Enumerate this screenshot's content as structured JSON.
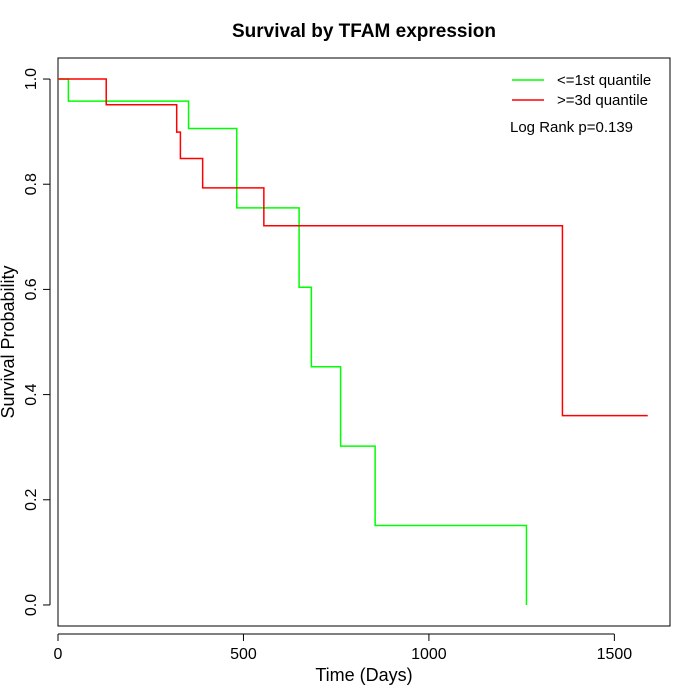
{
  "chart_data": {
    "type": "line",
    "title": "Survival by TFAM expression",
    "xlabel": "Time (Days)",
    "ylabel": "Survival Probability",
    "xlim": [
      0,
      1650
    ],
    "ylim": [
      -0.04,
      1.04
    ],
    "x_ticks": [
      0,
      500,
      1000,
      1500
    ],
    "y_ticks": [
      0.0,
      0.2,
      0.4,
      0.6,
      0.8,
      1.0
    ],
    "x_tick_labels": [
      "0",
      "500",
      "1000",
      "1500"
    ],
    "y_tick_labels": [
      "0.0",
      "0.2",
      "0.4",
      "0.6",
      "0.8",
      "1.0"
    ],
    "legend_position": "top-right",
    "annotation": "Log Rank p=0.139",
    "step": true,
    "series": [
      {
        "name": "<=1st quantile",
        "color": "#00ff00",
        "x": [
          0,
          28,
          352,
          482,
          650,
          683,
          762,
          855,
          1263,
          1263
        ],
        "y": [
          1.0,
          0.958,
          0.906,
          0.755,
          0.604,
          0.453,
          0.302,
          0.151,
          0.151,
          0.0
        ]
      },
      {
        "name": ">=3d quantile",
        "color": "#ff0000",
        "x": [
          0,
          130,
          320,
          330,
          390,
          555,
          1360,
          1590
        ],
        "y": [
          1.0,
          0.951,
          0.899,
          0.849,
          0.793,
          0.721,
          0.36,
          0.36
        ]
      }
    ]
  }
}
